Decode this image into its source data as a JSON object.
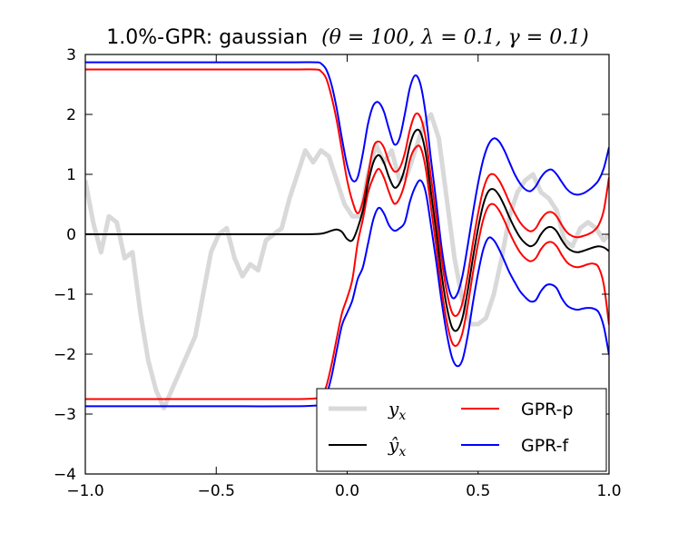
{
  "chart_data": {
    "type": "line",
    "title": {
      "prefix": "1.0%-GPR: gaussian",
      "params": "(θ = 100, λ = 0.1, γ = 0.1)"
    },
    "xlabel": "",
    "ylabel": "",
    "xlim": [
      -1.0,
      1.0
    ],
    "ylim": [
      -4,
      3
    ],
    "x_ticks": [
      -1.0,
      -0.5,
      0.0,
      0.5,
      1.0
    ],
    "x_tick_labels": [
      "−1.0",
      "−0.5",
      "0.0",
      "0.5",
      "1.0"
    ],
    "y_ticks": [
      -4,
      -3,
      -2,
      -1,
      0,
      1,
      2,
      3
    ],
    "y_tick_labels": [
      "−4",
      "−3",
      "−2",
      "−1",
      "0",
      "1",
      "2",
      "3"
    ],
    "grid": false,
    "legend": {
      "placement": "lower-right",
      "entries": [
        {
          "series": "y_x",
          "label": "y",
          "subscript": "x",
          "math": true
        },
        {
          "series": "GPR-p",
          "label": "GPR-p",
          "math": false
        },
        {
          "series": "y_hat_x",
          "label": "ŷ",
          "subscript": "x",
          "math": true
        },
        {
          "series": "GPR-f",
          "label": "GPR-f",
          "math": false
        }
      ]
    },
    "series": [
      {
        "name": "y_x",
        "color": "#d9d9d9",
        "kind": "noisy",
        "x": [
          -1.0,
          -0.97,
          -0.94,
          -0.91,
          -0.88,
          -0.85,
          -0.82,
          -0.79,
          -0.76,
          -0.73,
          -0.7,
          -0.67,
          -0.64,
          -0.61,
          -0.58,
          -0.55,
          -0.52,
          -0.49,
          -0.46,
          -0.43,
          -0.4,
          -0.37,
          -0.34,
          -0.31,
          -0.28,
          -0.25,
          -0.22,
          -0.19,
          -0.16,
          -0.13,
          -0.1,
          -0.07,
          -0.04,
          -0.01,
          0.02,
          0.05,
          0.08,
          0.11,
          0.14,
          0.17,
          0.2,
          0.23,
          0.26,
          0.29,
          0.32,
          0.35,
          0.38,
          0.41,
          0.44,
          0.47,
          0.5,
          0.53,
          0.56,
          0.59,
          0.62,
          0.65,
          0.68,
          0.71,
          0.74,
          0.77,
          0.8,
          0.83,
          0.86,
          0.89,
          0.92,
          0.95,
          0.98,
          1.0
        ],
        "y": [
          0.9,
          0.2,
          -0.3,
          0.3,
          0.2,
          -0.4,
          -0.3,
          -1.3,
          -2.1,
          -2.6,
          -2.9,
          -2.6,
          -2.3,
          -2.0,
          -1.7,
          -1.0,
          -0.3,
          0.0,
          0.1,
          -0.4,
          -0.7,
          -0.5,
          -0.6,
          -0.1,
          0.0,
          0.1,
          0.6,
          1.0,
          1.4,
          1.2,
          1.4,
          1.3,
          0.9,
          0.5,
          0.3,
          0.3,
          1.0,
          1.5,
          1.2,
          1.4,
          0.9,
          1.0,
          1.4,
          1.8,
          2.0,
          1.6,
          0.6,
          -0.4,
          -1.1,
          -1.5,
          -1.5,
          -1.4,
          -1.0,
          -0.4,
          0.3,
          0.7,
          0.9,
          1.0,
          0.7,
          0.6,
          0.4,
          -0.1,
          -0.2,
          0.1,
          0.2,
          0.1,
          -0.1,
          0.0
        ]
      },
      {
        "name": "y_hat_x",
        "color": "#000000",
        "x": [
          -1.0,
          -0.9,
          -0.8,
          -0.7,
          -0.6,
          -0.5,
          -0.4,
          -0.3,
          -0.2,
          -0.15,
          -0.1,
          -0.08,
          -0.06,
          -0.04,
          -0.02,
          0.0,
          0.02,
          0.04,
          0.06,
          0.08,
          0.1,
          0.12,
          0.14,
          0.16,
          0.18,
          0.2,
          0.22,
          0.24,
          0.26,
          0.28,
          0.3,
          0.32,
          0.34,
          0.36,
          0.38,
          0.4,
          0.42,
          0.44,
          0.46,
          0.48,
          0.5,
          0.52,
          0.54,
          0.56,
          0.58,
          0.6,
          0.62,
          0.64,
          0.66,
          0.68,
          0.7,
          0.72,
          0.74,
          0.76,
          0.78,
          0.8,
          0.82,
          0.84,
          0.86,
          0.88,
          0.9,
          0.92,
          0.94,
          0.96,
          0.98,
          1.0
        ],
        "y": [
          0.0,
          0.0,
          0.0,
          0.0,
          0.0,
          0.0,
          0.0,
          0.0,
          0.0,
          0.0,
          0.01,
          0.03,
          0.06,
          0.08,
          0.04,
          -0.08,
          -0.1,
          0.1,
          0.4,
          0.85,
          1.2,
          1.32,
          1.2,
          0.95,
          0.78,
          0.85,
          1.1,
          1.5,
          1.72,
          1.7,
          1.35,
          0.7,
          0.05,
          -0.65,
          -1.2,
          -1.55,
          -1.6,
          -1.4,
          -0.95,
          -0.4,
          0.1,
          0.5,
          0.72,
          0.75,
          0.65,
          0.48,
          0.28,
          0.1,
          -0.05,
          -0.15,
          -0.2,
          -0.15,
          0.0,
          0.1,
          0.12,
          0.05,
          -0.1,
          -0.22,
          -0.28,
          -0.3,
          -0.28,
          -0.25,
          -0.22,
          -0.2,
          -0.22,
          -0.28
        ]
      },
      {
        "name": "GPR-p",
        "color": "#ff0000",
        "band": true,
        "x": [
          -1.0,
          -0.8,
          -0.6,
          -0.4,
          -0.2,
          -0.12,
          -0.1,
          -0.08,
          -0.06,
          -0.04,
          -0.02,
          0.0,
          0.02,
          0.04,
          0.06,
          0.08,
          0.1,
          0.12,
          0.14,
          0.16,
          0.18,
          0.2,
          0.22,
          0.24,
          0.26,
          0.28,
          0.3,
          0.32,
          0.34,
          0.36,
          0.38,
          0.4,
          0.42,
          0.44,
          0.46,
          0.48,
          0.5,
          0.52,
          0.54,
          0.56,
          0.58,
          0.6,
          0.62,
          0.64,
          0.66,
          0.68,
          0.7,
          0.72,
          0.74,
          0.76,
          0.78,
          0.8,
          0.82,
          0.84,
          0.86,
          0.88,
          0.9,
          0.92,
          0.94,
          0.96,
          0.98,
          1.0
        ],
        "upper": [
          2.75,
          2.75,
          2.75,
          2.75,
          2.75,
          2.75,
          2.72,
          2.6,
          2.3,
          1.9,
          1.4,
          0.9,
          0.55,
          0.35,
          0.55,
          1.0,
          1.45,
          1.55,
          1.45,
          1.2,
          1.05,
          1.1,
          1.35,
          1.75,
          2.0,
          1.95,
          1.6,
          0.95,
          0.3,
          -0.4,
          -0.95,
          -1.3,
          -1.35,
          -1.15,
          -0.7,
          -0.15,
          0.35,
          0.75,
          0.97,
          1.0,
          0.9,
          0.73,
          0.53,
          0.35,
          0.2,
          0.1,
          0.05,
          0.1,
          0.25,
          0.35,
          0.37,
          0.3,
          0.15,
          0.03,
          -0.03,
          -0.05,
          -0.03,
          0.0,
          0.05,
          0.15,
          0.4,
          0.95
        ]
      },
      {
        "name": "GPR-f",
        "color": "#0000ff",
        "band": true,
        "x": [
          -1.0,
          -0.8,
          -0.6,
          -0.4,
          -0.2,
          -0.12,
          -0.1,
          -0.08,
          -0.06,
          -0.04,
          -0.02,
          0.0,
          0.02,
          0.04,
          0.06,
          0.08,
          0.1,
          0.12,
          0.14,
          0.16,
          0.18,
          0.2,
          0.22,
          0.24,
          0.26,
          0.28,
          0.3,
          0.32,
          0.34,
          0.36,
          0.38,
          0.4,
          0.42,
          0.44,
          0.46,
          0.48,
          0.5,
          0.52,
          0.54,
          0.56,
          0.58,
          0.6,
          0.62,
          0.64,
          0.66,
          0.68,
          0.7,
          0.72,
          0.74,
          0.76,
          0.78,
          0.8,
          0.82,
          0.84,
          0.86,
          0.88,
          0.9,
          0.92,
          0.94,
          0.96,
          0.98,
          1.0
        ],
        "upper": [
          2.87,
          2.87,
          2.87,
          2.87,
          2.87,
          2.87,
          2.85,
          2.75,
          2.5,
          2.1,
          1.6,
          1.15,
          0.9,
          0.95,
          1.35,
          1.85,
          2.15,
          2.2,
          2.05,
          1.75,
          1.5,
          1.6,
          2.0,
          2.45,
          2.65,
          2.5,
          2.0,
          1.25,
          0.55,
          -0.2,
          -0.75,
          -1.05,
          -1.0,
          -0.7,
          -0.2,
          0.35,
          0.85,
          1.25,
          1.5,
          1.6,
          1.55,
          1.4,
          1.2,
          1.0,
          0.85,
          0.75,
          0.72,
          0.8,
          0.95,
          1.05,
          1.08,
          1.0,
          0.87,
          0.75,
          0.68,
          0.66,
          0.68,
          0.73,
          0.8,
          0.9,
          1.1,
          1.45
        ]
      }
    ]
  }
}
